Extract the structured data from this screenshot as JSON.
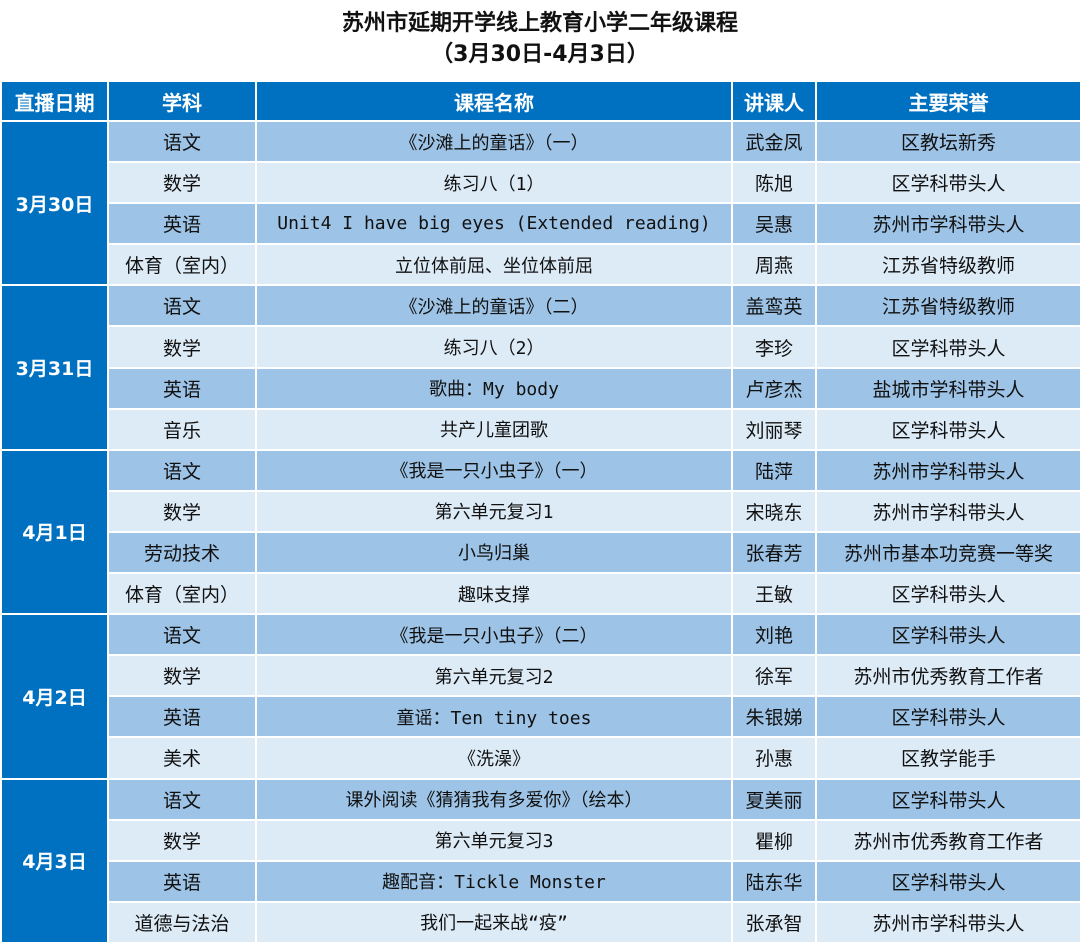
{
  "title": {
    "line1": "苏州市延期开学线上教育小学二年级课程",
    "line2": "（3月30日-4月3日）"
  },
  "headers": [
    "直播日期",
    "学科",
    "课程名称",
    "讲课人",
    "主要荣誉"
  ],
  "colors": {
    "header": "#0070c0",
    "row_dark": "#9dc3e6",
    "row_light": "#ddebf7"
  },
  "days": [
    {
      "date": "3月30日",
      "rows": [
        {
          "subject": "语文",
          "course": "《沙滩上的童话》（一）",
          "teacher": "武金凤",
          "honor": "区教坛新秀"
        },
        {
          "subject": "数学",
          "course": "练习八（1）",
          "teacher": "陈旭",
          "honor": "区学科带头人"
        },
        {
          "subject": "英语",
          "course": "Unit4 I have big eyes (Extended reading)",
          "teacher": "吴惠",
          "honor": "苏州市学科带头人"
        },
        {
          "subject": "体育（室内）",
          "course": "立位体前屈、坐位体前屈",
          "teacher": "周燕",
          "honor": "江苏省特级教师"
        }
      ]
    },
    {
      "date": "3月31日",
      "rows": [
        {
          "subject": "语文",
          "course": "《沙滩上的童话》（二）",
          "teacher": "盖鸾英",
          "honor": "江苏省特级教师"
        },
        {
          "subject": "数学",
          "course": "练习八（2）",
          "teacher": "李珍",
          "honor": "区学科带头人"
        },
        {
          "subject": "英语",
          "course": "歌曲：My body",
          "teacher": "卢彦杰",
          "honor": "盐城市学科带头人"
        },
        {
          "subject": "音乐",
          "course": "共产儿童团歌",
          "teacher": "刘丽琴",
          "honor": "区学科带头人"
        }
      ]
    },
    {
      "date": "4月1日",
      "rows": [
        {
          "subject": "语文",
          "course": "《我是一只小虫子》（一）",
          "teacher": "陆萍",
          "honor": "苏州市学科带头人"
        },
        {
          "subject": "数学",
          "course": "第六单元复习1",
          "teacher": "宋晓东",
          "honor": "苏州市学科带头人"
        },
        {
          "subject": "劳动技术",
          "course": "小鸟归巢",
          "teacher": "张春芳",
          "honor": "苏州市基本功竞赛一等奖"
        },
        {
          "subject": "体育（室内）",
          "course": "趣味支撑",
          "teacher": "王敏",
          "honor": "区学科带头人"
        }
      ]
    },
    {
      "date": "4月2日",
      "rows": [
        {
          "subject": "语文",
          "course": "《我是一只小虫子》（二）",
          "teacher": "刘艳",
          "honor": "区学科带头人"
        },
        {
          "subject": "数学",
          "course": "第六单元复习2",
          "teacher": "徐军",
          "honor": "苏州市优秀教育工作者"
        },
        {
          "subject": "英语",
          "course": "童谣：Ten tiny toes",
          "teacher": "朱银娣",
          "honor": "区学科带头人"
        },
        {
          "subject": "美术",
          "course": "《洗澡》",
          "teacher": "孙惠",
          "honor": "区教学能手"
        }
      ]
    },
    {
      "date": "4月3日",
      "rows": [
        {
          "subject": "语文",
          "course": "课外阅读《猜猜我有多爱你》（绘本）",
          "teacher": "夏美丽",
          "honor": "区学科带头人"
        },
        {
          "subject": "数学",
          "course": "第六单元复习3",
          "teacher": "瞿柳",
          "honor": "苏州市优秀教育工作者"
        },
        {
          "subject": "英语",
          "course": "趣配音：Tickle Monster",
          "teacher": "陆东华",
          "honor": "区学科带头人"
        },
        {
          "subject": "道德与法治",
          "course": "我们一起来战“疫”",
          "teacher": "张承智",
          "honor": "苏州市学科带头人"
        }
      ]
    }
  ]
}
